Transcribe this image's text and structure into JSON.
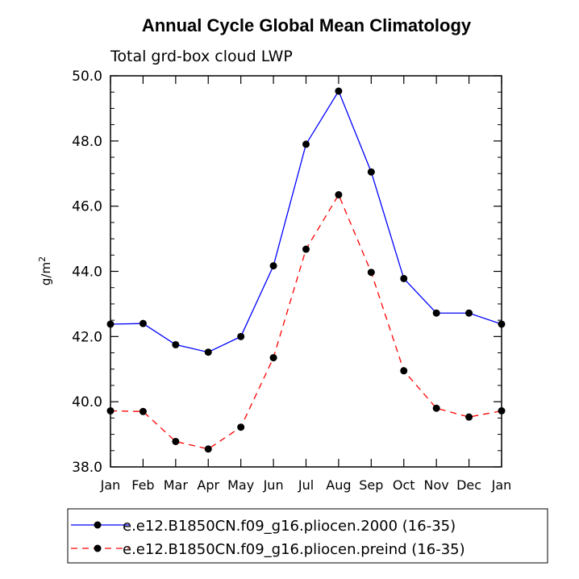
{
  "chart_data": {
    "type": "line",
    "title": "Annual Cycle Global Mean Climatology",
    "subtitle": "Total grd-box cloud LWP",
    "ylabel": "g/m",
    "ylabel_superscript": "2",
    "xlabel": "",
    "ylim": [
      38.0,
      50.0
    ],
    "yticks": [
      "38.0",
      "40.0",
      "42.0",
      "44.0",
      "46.0",
      "48.0",
      "50.0"
    ],
    "categories": [
      "Jan",
      "Feb",
      "Mar",
      "Apr",
      "May",
      "Jun",
      "Jul",
      "Aug",
      "Sep",
      "Oct",
      "Nov",
      "Dec",
      "Jan"
    ],
    "series": [
      {
        "name": "e.e12.B1850CN.f09_g16.pliocen.2000 (16-35)",
        "color": "#0000ff",
        "dash": "solid",
        "values": [
          42.38,
          42.4,
          41.75,
          41.52,
          42.0,
          44.17,
          47.9,
          49.53,
          47.05,
          43.78,
          42.72,
          42.72,
          42.38
        ]
      },
      {
        "name": "e.e12.B1850CN.f09_g16.pliocen.preind (16-35)",
        "color": "#ff0000",
        "dash": "dashed",
        "values": [
          39.72,
          39.7,
          38.78,
          38.55,
          39.22,
          41.35,
          44.68,
          46.35,
          43.97,
          40.95,
          39.8,
          39.53,
          39.72
        ]
      }
    ],
    "legend_position": "bottom"
  }
}
